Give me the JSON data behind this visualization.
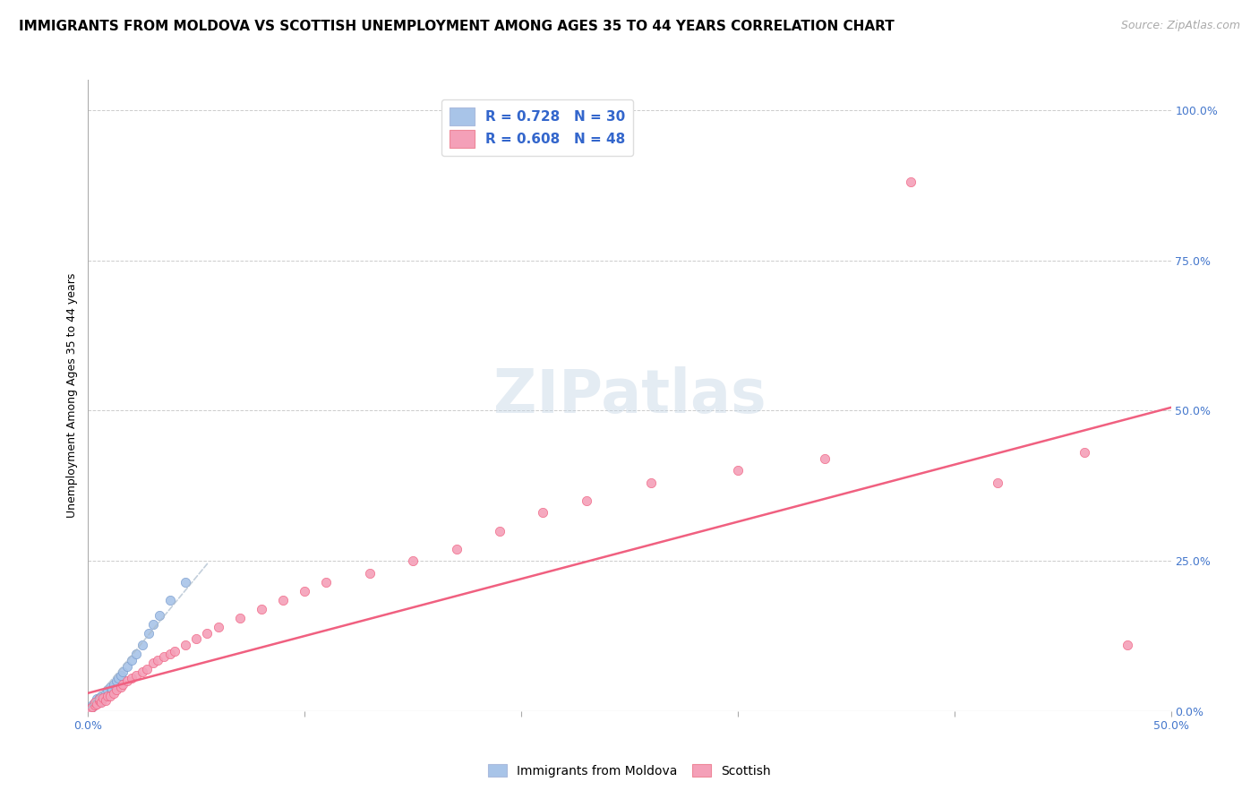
{
  "title": "IMMIGRANTS FROM MOLDOVA VS SCOTTISH UNEMPLOYMENT AMONG AGES 35 TO 44 YEARS CORRELATION CHART",
  "source": "Source: ZipAtlas.com",
  "ylabel": "Unemployment Among Ages 35 to 44 years",
  "right_yticks": [
    "0.0%",
    "25.0%",
    "50.0%",
    "75.0%",
    "100.0%"
  ],
  "right_ytick_vals": [
    0.0,
    0.25,
    0.5,
    0.75,
    1.0
  ],
  "xlim": [
    0.0,
    0.5
  ],
  "ylim": [
    0.0,
    1.05
  ],
  "color_blue": "#a8c4e8",
  "color_pink": "#f4a0b8",
  "line_blue": "#7799cc",
  "line_pink": "#f06080",
  "watermark": "ZIPatlas",
  "title_fontsize": 11,
  "source_fontsize": 9,
  "axis_label_fontsize": 9,
  "tick_fontsize": 9,
  "legend_fontsize": 11,
  "watermark_fontsize": 48,
  "blue_x": [
    0.001,
    0.002,
    0.002,
    0.003,
    0.003,
    0.004,
    0.004,
    0.005,
    0.005,
    0.006,
    0.006,
    0.007,
    0.008,
    0.009,
    0.01,
    0.011,
    0.012,
    0.013,
    0.014,
    0.015,
    0.016,
    0.018,
    0.02,
    0.022,
    0.025,
    0.028,
    0.03,
    0.033,
    0.038,
    0.045
  ],
  "blue_y": [
    0.005,
    0.008,
    0.01,
    0.012,
    0.015,
    0.018,
    0.02,
    0.015,
    0.022,
    0.018,
    0.025,
    0.025,
    0.03,
    0.035,
    0.04,
    0.035,
    0.045,
    0.05,
    0.055,
    0.06,
    0.065,
    0.075,
    0.085,
    0.095,
    0.11,
    0.13,
    0.145,
    0.16,
    0.185,
    0.215
  ],
  "pink_x": [
    0.001,
    0.002,
    0.003,
    0.003,
    0.004,
    0.005,
    0.005,
    0.006,
    0.007,
    0.008,
    0.009,
    0.01,
    0.012,
    0.013,
    0.015,
    0.016,
    0.018,
    0.02,
    0.022,
    0.025,
    0.027,
    0.03,
    0.032,
    0.035,
    0.038,
    0.04,
    0.045,
    0.05,
    0.055,
    0.06,
    0.07,
    0.08,
    0.09,
    0.1,
    0.11,
    0.13,
    0.15,
    0.17,
    0.19,
    0.21,
    0.23,
    0.26,
    0.3,
    0.34,
    0.38,
    0.42,
    0.46,
    0.48
  ],
  "pink_y": [
    0.005,
    0.008,
    0.01,
    0.015,
    0.012,
    0.018,
    0.02,
    0.015,
    0.022,
    0.018,
    0.025,
    0.025,
    0.03,
    0.035,
    0.04,
    0.045,
    0.05,
    0.055,
    0.06,
    0.065,
    0.07,
    0.08,
    0.085,
    0.09,
    0.095,
    0.1,
    0.11,
    0.12,
    0.13,
    0.14,
    0.155,
    0.17,
    0.185,
    0.2,
    0.215,
    0.23,
    0.25,
    0.27,
    0.3,
    0.33,
    0.35,
    0.38,
    0.4,
    0.42,
    0.88,
    0.38,
    0.43,
    0.11
  ],
  "blue_line_x": [
    0.0,
    0.055
  ],
  "blue_line_y": [
    0.005,
    0.245
  ],
  "pink_line_x": [
    0.0,
    0.5
  ],
  "pink_line_y": [
    0.03,
    0.505
  ]
}
